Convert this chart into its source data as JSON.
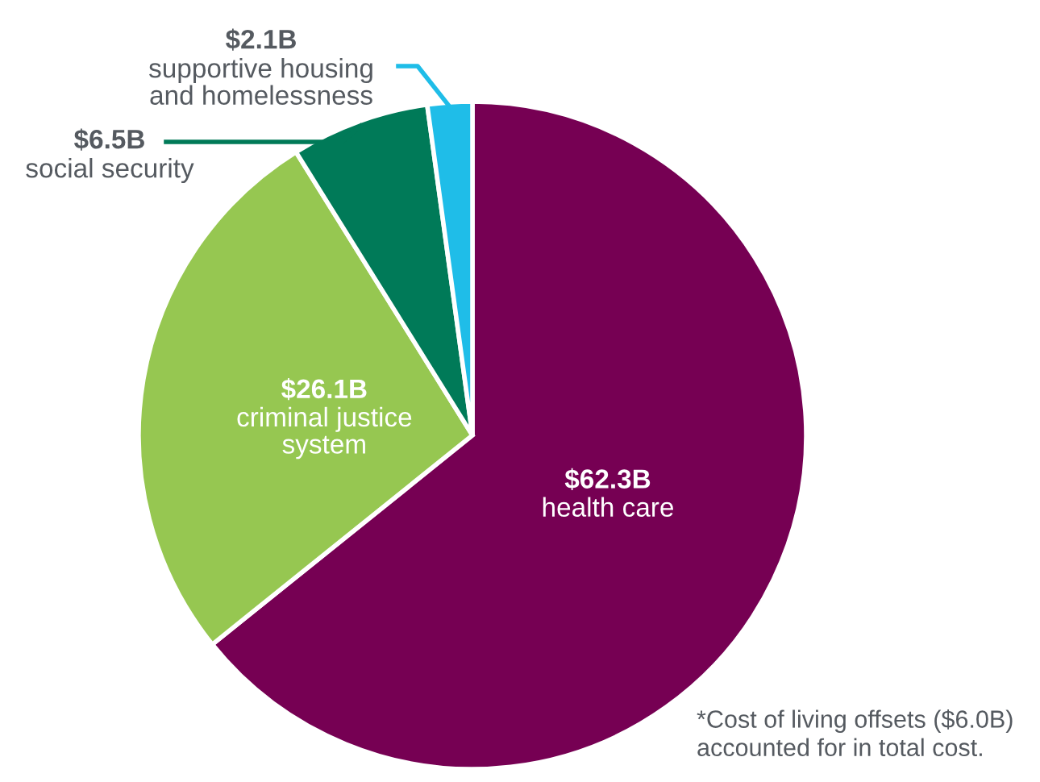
{
  "chart_data": {
    "type": "pie",
    "categories": [
      "health care",
      "criminal justice\nsystem",
      "social security",
      "supportive housing\nand homelessness"
    ],
    "values": [
      62.3,
      26.1,
      6.5,
      2.1
    ],
    "value_labels": [
      "$62.3B",
      "$26.1B",
      "$6.5B",
      "$2.1B"
    ],
    "colors": [
      "#760053",
      "#96c751",
      "#007a58",
      "#1fbde8"
    ],
    "annotations": [
      "*Cost of living offsets ($6.0B)\naccounted for in total cost."
    ],
    "legend": false
  }
}
